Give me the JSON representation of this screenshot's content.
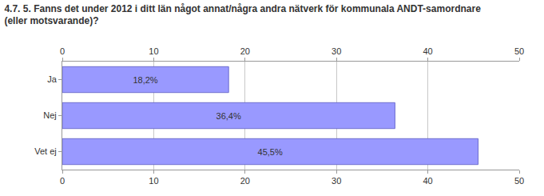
{
  "chart_data": {
    "type": "bar",
    "orientation": "horizontal",
    "title": "4.7. 5. Fanns det under 2012 i ditt län något annat/några andra nätverk för kommunala ANDT-samordnare\n(eller motsvarande)?",
    "categories": [
      "Ja",
      "Nej",
      "Vet ej"
    ],
    "values": [
      18.2,
      36.4,
      45.5
    ],
    "value_labels": [
      "18,2%",
      "36,4%",
      "45,5%"
    ],
    "color": "#9999ff",
    "xlim": [
      0,
      50
    ],
    "xticks": [
      0,
      10,
      20,
      30,
      40,
      50
    ],
    "grid": true,
    "data_labels": true
  }
}
